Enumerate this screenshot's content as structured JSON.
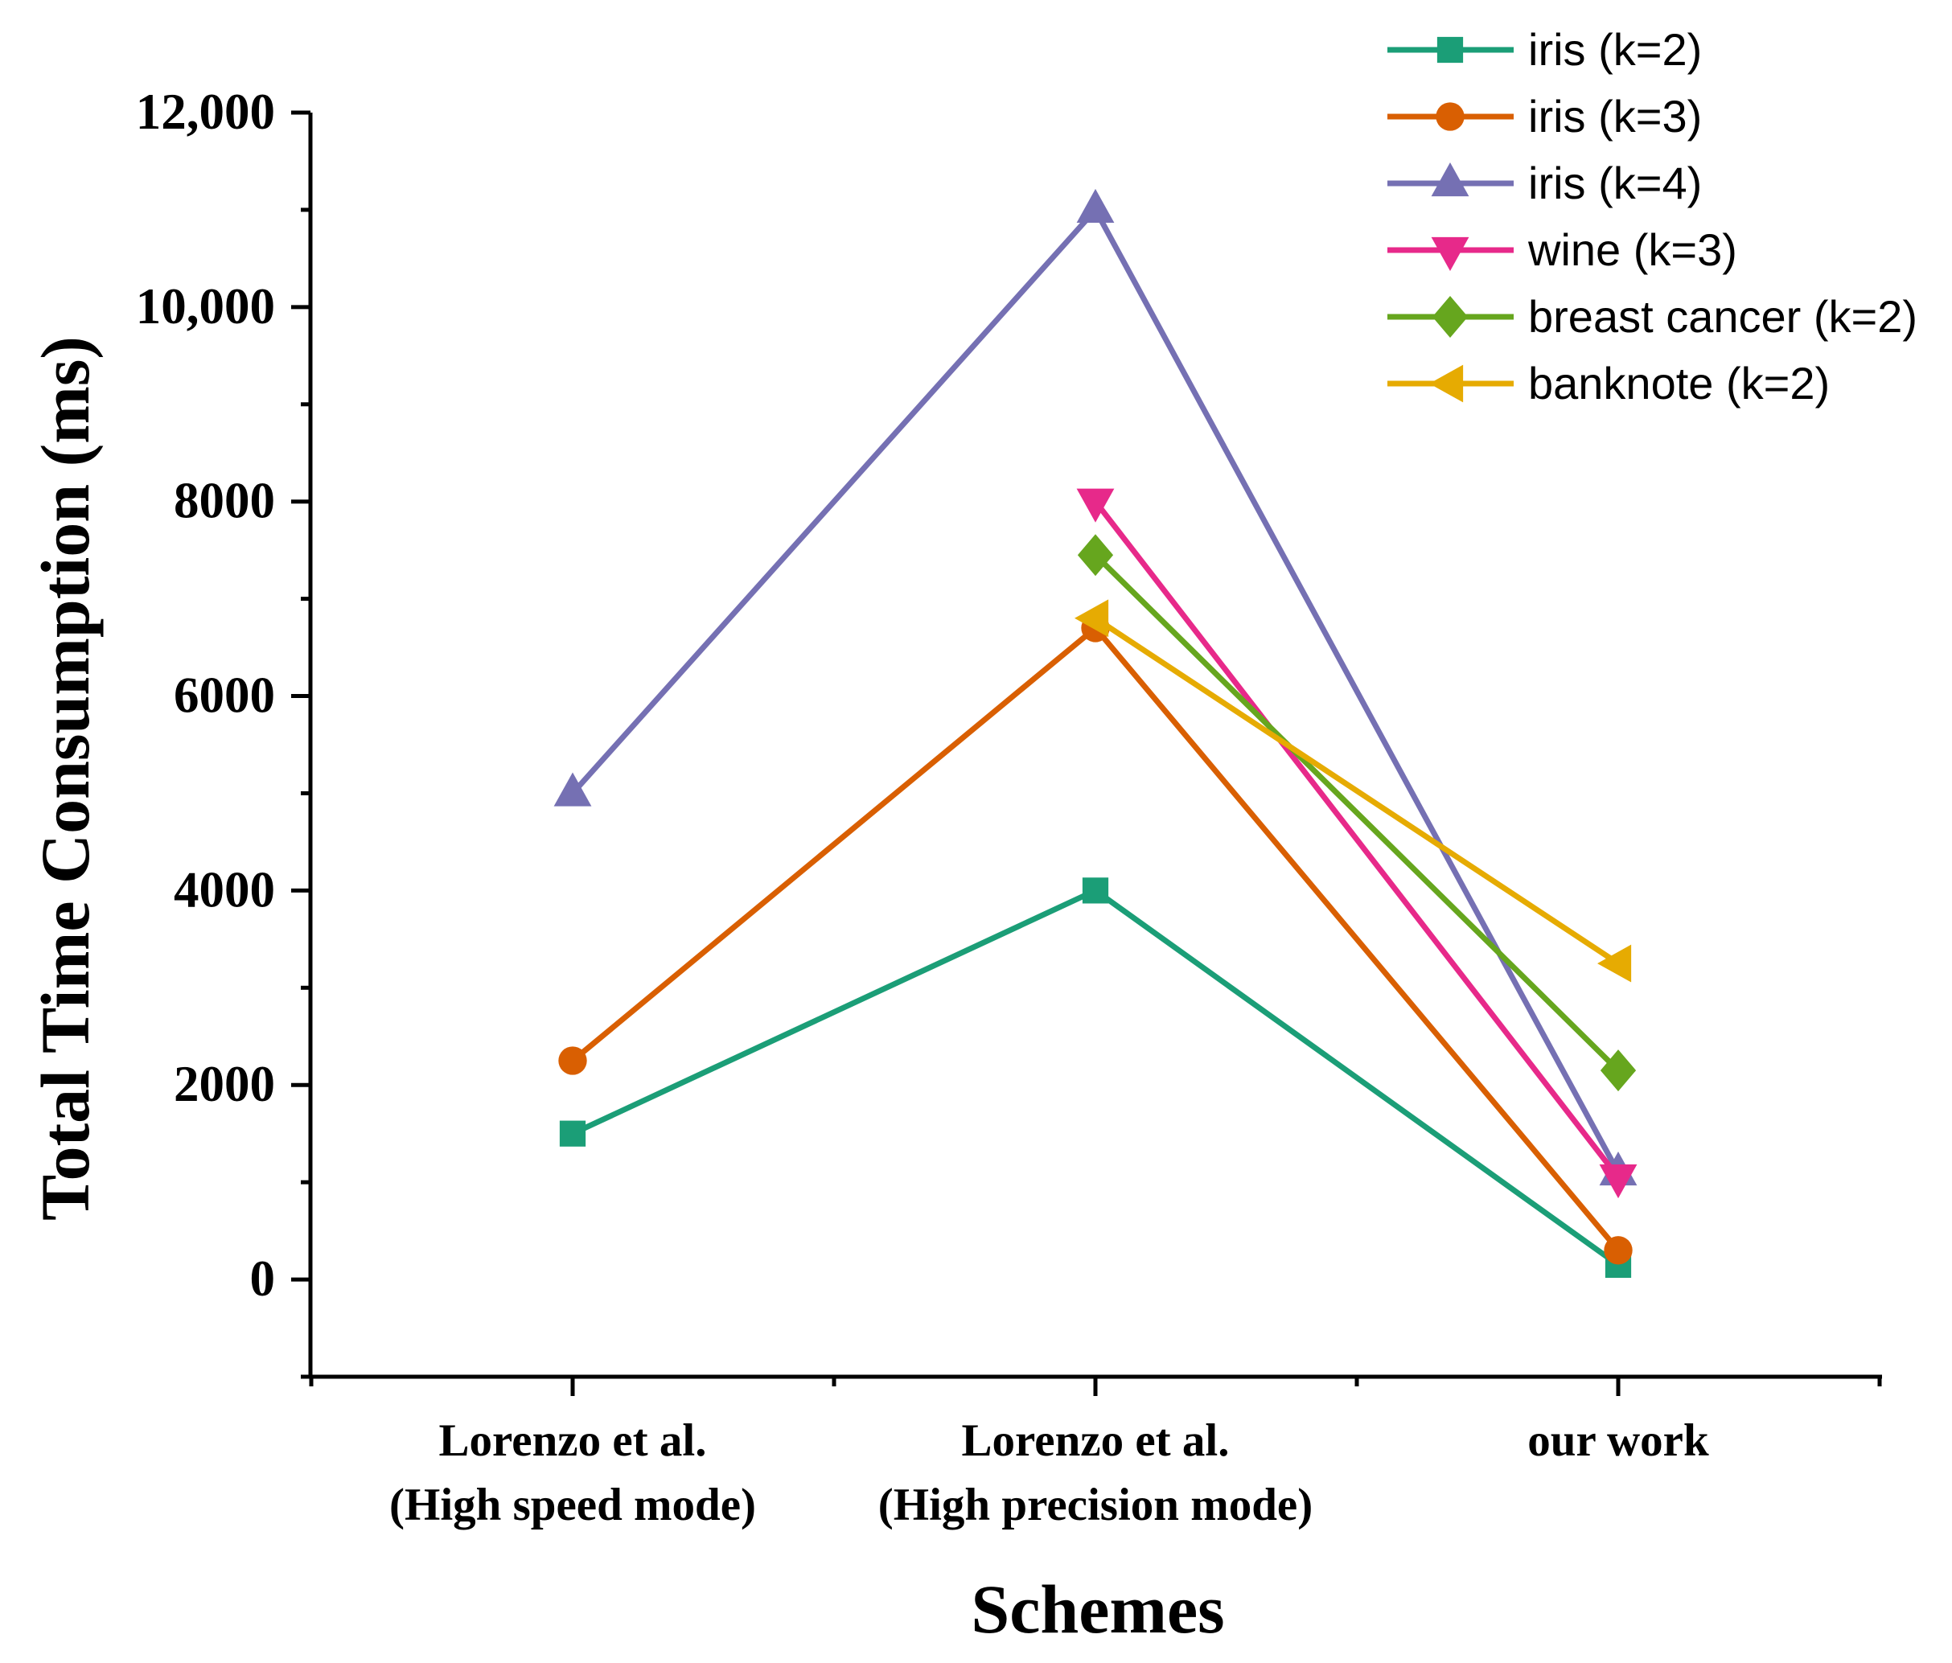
{
  "chart_data": {
    "type": "line",
    "title": "",
    "xlabel": "Schemes",
    "ylabel": "Total Time Consumption (ms)",
    "categories": [
      [
        "Lorenzo et al.",
        "(High speed mode)"
      ],
      [
        "Lorenzo et al.",
        "(High precision mode)"
      ],
      [
        "our work"
      ]
    ],
    "ylim": [
      -1000,
      12000
    ],
    "yticks": [
      0,
      2000,
      4000,
      6000,
      8000,
      10000,
      12000
    ],
    "ytick_labels": [
      "0",
      "2000",
      "4000",
      "6000",
      "8000",
      "10,000",
      "12,000"
    ],
    "legend_position": "top-right",
    "series": [
      {
        "name": "iris (k=2)",
        "color": "#1b9e77",
        "marker": "square",
        "values": [
          1500,
          4000,
          150
        ]
      },
      {
        "name": "iris (k=3)",
        "color": "#d95f02",
        "marker": "circle",
        "values": [
          2250,
          6700,
          300
        ]
      },
      {
        "name": "iris (k=4)",
        "color": "#7570b3",
        "marker": "triangle-up",
        "values": [
          5000,
          11000,
          1100
        ]
      },
      {
        "name": "wine (k=3)",
        "color": "#e7298a",
        "marker": "triangle-down",
        "values": [
          null,
          8000,
          1050
        ]
      },
      {
        "name": "breast cancer (k=2)",
        "color": "#66a61e",
        "marker": "diamond",
        "values": [
          null,
          7450,
          2150
        ]
      },
      {
        "name": "banknote (k=2)",
        "color": "#e6ab02",
        "marker": "triangle-left",
        "values": [
          null,
          6800,
          3250
        ]
      }
    ]
  }
}
